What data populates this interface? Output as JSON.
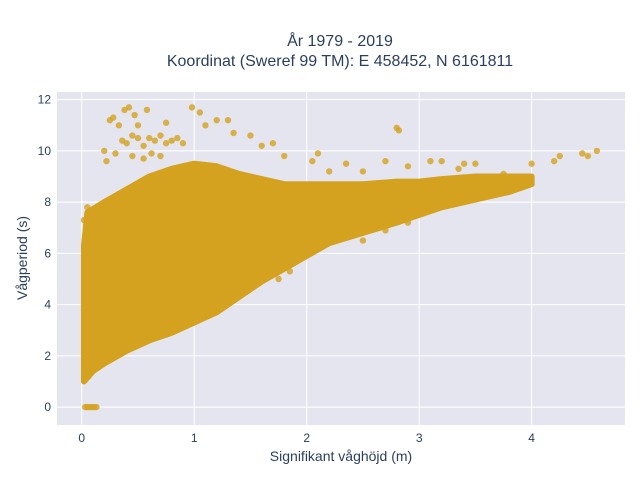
{
  "chart_data": {
    "type": "scatter",
    "title": "År 1979 - 2019",
    "subtitle": "Koordinat (Sweref 99 TM): E 458452, N 6161811",
    "xlabel": "Signifikant våghöjd (m)",
    "ylabel": "Vågperiod (s)",
    "xlim": [
      -0.22,
      4.83
    ],
    "ylim": [
      -0.7,
      12.3
    ],
    "xticks": [
      0,
      1,
      2,
      3,
      4
    ],
    "yticks": [
      0,
      2,
      4,
      6,
      8,
      10,
      12
    ],
    "grid": true,
    "legend": "none",
    "colors": {
      "marker": "#d4a21f",
      "plot_bg": "#e5e5f0",
      "grid": "#ffffff",
      "text": "#2a3f5f"
    },
    "density_region": {
      "lower_boundary": [
        [
          0.02,
          1.0
        ],
        [
          0.1,
          1.4
        ],
        [
          0.2,
          1.7
        ],
        [
          0.4,
          2.2
        ],
        [
          0.6,
          2.6
        ],
        [
          0.8,
          2.9
        ],
        [
          1.0,
          3.3
        ],
        [
          1.2,
          3.7
        ],
        [
          1.4,
          4.3
        ],
        [
          1.6,
          4.9
        ],
        [
          1.8,
          5.4
        ],
        [
          2.0,
          5.9
        ],
        [
          2.2,
          6.4
        ],
        [
          2.5,
          6.8
        ],
        [
          2.8,
          7.2
        ],
        [
          3.0,
          7.5
        ],
        [
          3.2,
          7.8
        ],
        [
          3.5,
          8.1
        ],
        [
          3.8,
          8.4
        ],
        [
          4.0,
          8.7
        ]
      ],
      "upper_boundary": [
        [
          0.02,
          6.3
        ],
        [
          0.05,
          7.6
        ],
        [
          0.2,
          8.0
        ],
        [
          0.4,
          8.5
        ],
        [
          0.6,
          9.0
        ],
        [
          0.8,
          9.3
        ],
        [
          1.0,
          9.5
        ],
        [
          1.2,
          9.4
        ],
        [
          1.4,
          9.1
        ],
        [
          1.6,
          8.9
        ],
        [
          1.8,
          8.7
        ],
        [
          2.0,
          8.7
        ],
        [
          2.2,
          8.7
        ],
        [
          2.5,
          8.7
        ],
        [
          2.8,
          8.8
        ],
        [
          3.0,
          8.8
        ],
        [
          3.2,
          8.9
        ],
        [
          3.5,
          9.0
        ],
        [
          3.8,
          9.0
        ],
        [
          4.0,
          9.0
        ]
      ]
    },
    "outliers": [
      [
        0.03,
        0.0
      ],
      [
        0.05,
        0.0
      ],
      [
        0.07,
        0.0
      ],
      [
        0.09,
        0.0
      ],
      [
        0.11,
        0.0
      ],
      [
        0.13,
        0.0
      ],
      [
        0.25,
        11.2
      ],
      [
        0.28,
        11.3
      ],
      [
        0.38,
        11.6
      ],
      [
        0.42,
        11.7
      ],
      [
        0.47,
        11.4
      ],
      [
        0.58,
        11.6
      ],
      [
        0.33,
        11.0
      ],
      [
        0.36,
        10.4
      ],
      [
        0.4,
        10.3
      ],
      [
        0.45,
        10.6
      ],
      [
        0.5,
        10.5
      ],
      [
        0.55,
        10.2
      ],
      [
        0.6,
        10.5
      ],
      [
        0.65,
        10.4
      ],
      [
        0.7,
        10.6
      ],
      [
        0.75,
        10.3
      ],
      [
        0.8,
        10.4
      ],
      [
        0.85,
        10.5
      ],
      [
        0.9,
        10.3
      ],
      [
        0.5,
        11.0
      ],
      [
        0.75,
        11.1
      ],
      [
        0.98,
        11.7
      ],
      [
        1.05,
        11.5
      ],
      [
        1.1,
        11.0
      ],
      [
        1.2,
        11.2
      ],
      [
        1.3,
        11.2
      ],
      [
        1.35,
        10.7
      ],
      [
        1.5,
        10.6
      ],
      [
        1.6,
        10.2
      ],
      [
        1.7,
        10.3
      ],
      [
        1.8,
        9.8
      ],
      [
        0.2,
        10.0
      ],
      [
        0.22,
        9.6
      ],
      [
        0.3,
        9.9
      ],
      [
        0.45,
        9.8
      ],
      [
        0.55,
        9.7
      ],
      [
        0.62,
        9.9
      ],
      [
        0.7,
        9.8
      ],
      [
        0.02,
        7.3
      ],
      [
        0.05,
        7.8
      ],
      [
        0.04,
        1.6
      ],
      [
        0.06,
        1.2
      ],
      [
        2.05,
        9.6
      ],
      [
        2.1,
        9.9
      ],
      [
        2.2,
        9.2
      ],
      [
        2.35,
        9.5
      ],
      [
        2.5,
        9.2
      ],
      [
        2.7,
        9.6
      ],
      [
        2.8,
        10.9
      ],
      [
        2.82,
        10.8
      ],
      [
        2.9,
        9.4
      ],
      [
        3.1,
        9.6
      ],
      [
        3.2,
        9.6
      ],
      [
        3.35,
        9.3
      ],
      [
        3.4,
        9.5
      ],
      [
        3.5,
        9.5
      ],
      [
        3.6,
        9.0
      ],
      [
        3.75,
        9.1
      ],
      [
        2.5,
        6.5
      ],
      [
        2.7,
        6.9
      ],
      [
        2.9,
        7.2
      ],
      [
        1.75,
        5.0
      ],
      [
        1.85,
        5.3
      ],
      [
        4.0,
        9.5
      ],
      [
        4.2,
        9.6
      ],
      [
        4.25,
        9.8
      ],
      [
        4.45,
        9.9
      ],
      [
        4.5,
        9.8
      ],
      [
        4.58,
        10.0
      ]
    ]
  }
}
